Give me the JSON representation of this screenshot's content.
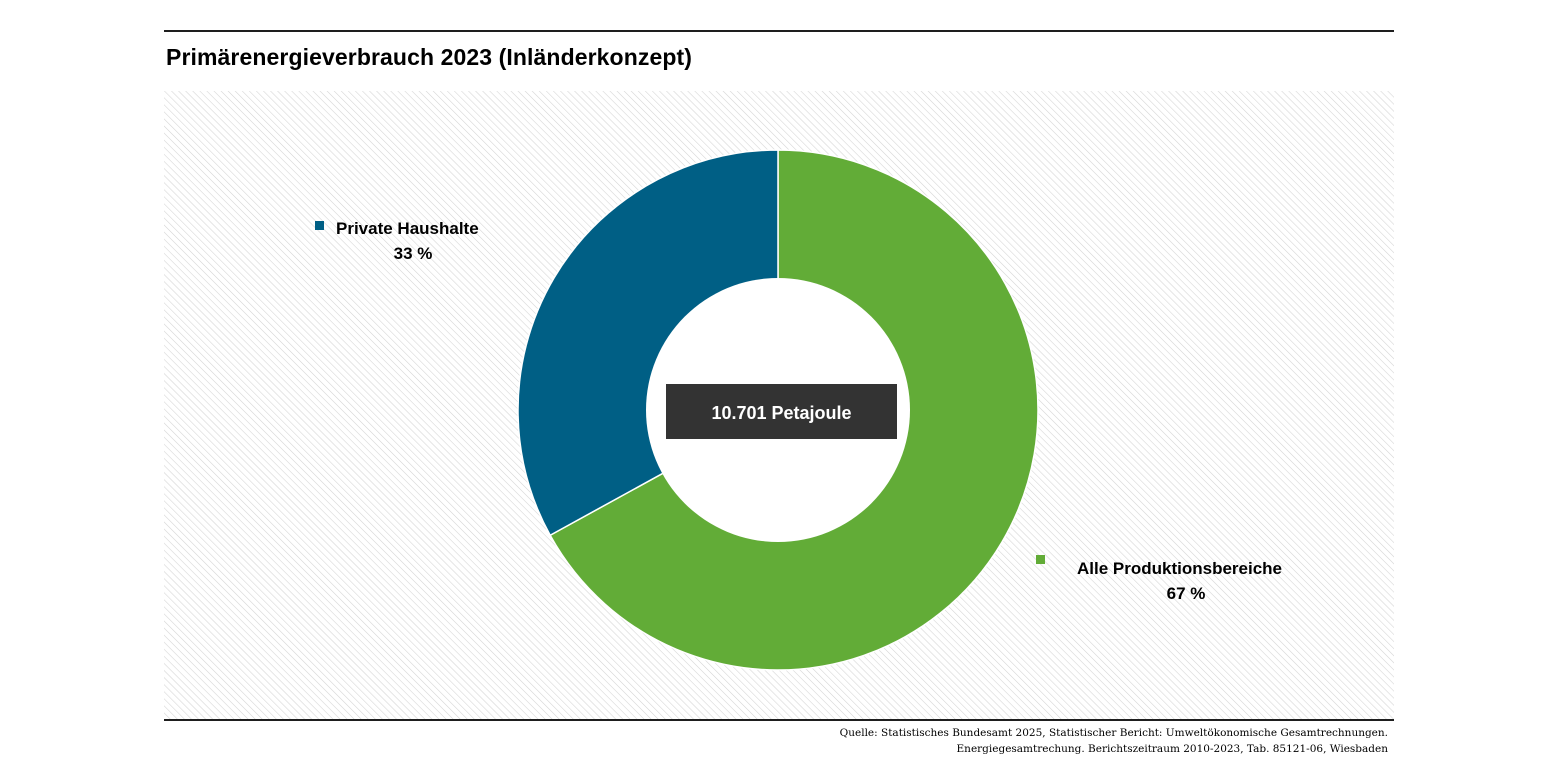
{
  "header": {
    "title": "Primärenergieverbrauch 2023 (Inländerkonzept)"
  },
  "chart_data": {
    "type": "donut",
    "title": "Primärenergieverbrauch 2023 (Inländerkonzept)",
    "total_label": "10.701 Petajoule",
    "series": [
      {
        "name": "Private Haushalte",
        "value": 33,
        "value_label": "33 %",
        "color": "#005f85"
      },
      {
        "name": "Alle Produktionsbereiche",
        "value": 67,
        "value_label": "67 %",
        "color": "#62ac37"
      }
    ],
    "legend_placement": "beside slices",
    "background": "diagonal hatching"
  },
  "colors": {
    "rule": "#1e1e1e",
    "center_box": "#333333",
    "center_text": "#ffffff",
    "hatch": "#d4d4d4"
  },
  "footer": {
    "source_line_1": "Quelle: Statistisches Bundesamt 2025, Statistischer Bericht: Umweltökonomische Gesamtrechnungen.",
    "source_line_2": "Energiegesamtrechung. Berichtszeitraum 2010-2023, Tab. 85121-06, Wiesbaden"
  }
}
